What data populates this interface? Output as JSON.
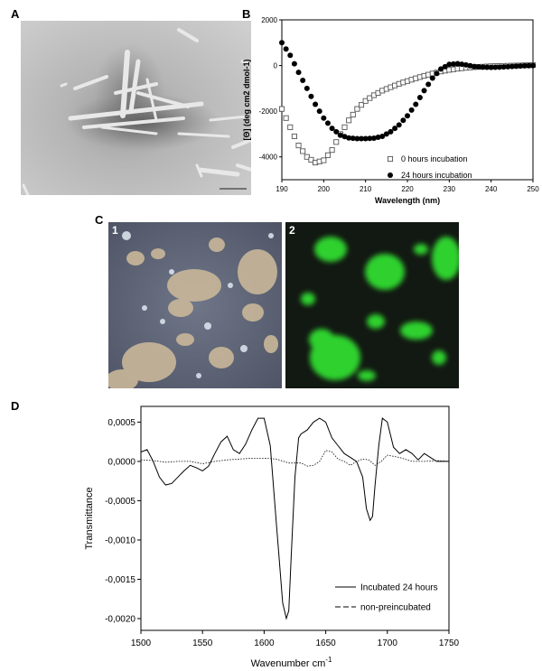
{
  "panel_labels": {
    "a": "A",
    "b": "B",
    "c": "C",
    "d": "D"
  },
  "micrograph_labels": {
    "left": "1",
    "right": "2"
  },
  "colors": {
    "fluorescence": "#2fd12f",
    "background_dark": "#101510",
    "em_background": "#b8b8b8"
  },
  "chart_data": [
    {
      "type": "scatter",
      "panel": "B",
      "xlabel": "Wavelength (nm)",
      "ylabel": "[Θ] (deg cm2 dmol-1)",
      "xlim": [
        190,
        250
      ],
      "ylim": [
        -5000,
        2000
      ],
      "xticks": [
        190,
        200,
        210,
        220,
        230,
        240,
        250
      ],
      "yticks": [
        2000,
        0,
        -2000,
        -4000
      ],
      "legend_position": "bottom-right",
      "series": [
        {
          "name": "0 hours incubation",
          "marker": "open-square",
          "x": [
            190,
            192,
            194,
            196,
            198,
            200,
            202,
            204,
            206,
            208,
            210,
            212,
            214,
            216,
            218,
            220,
            222,
            224,
            226,
            228,
            230,
            232,
            234,
            236,
            238,
            240,
            242,
            244,
            246,
            248,
            250
          ],
          "y": [
            -1900,
            -2700,
            -3500,
            -4000,
            -4250,
            -4150,
            -3700,
            -3000,
            -2400,
            -1900,
            -1550,
            -1300,
            -1100,
            -950,
            -800,
            -680,
            -560,
            -450,
            -350,
            -260,
            -190,
            -140,
            -100,
            -70,
            -50,
            -30,
            -20,
            -10,
            0,
            10,
            20
          ]
        },
        {
          "name": "24 hours incubation",
          "marker": "filled-circle",
          "x": [
            190,
            192,
            194,
            196,
            198,
            200,
            202,
            204,
            206,
            208,
            210,
            212,
            214,
            216,
            218,
            220,
            222,
            224,
            226,
            228,
            230,
            232,
            234,
            236,
            238,
            240,
            242,
            244,
            246,
            248,
            250
          ],
          "y": [
            1000,
            450,
            -300,
            -1000,
            -1700,
            -2300,
            -2750,
            -3050,
            -3170,
            -3200,
            -3200,
            -3180,
            -3100,
            -2900,
            -2600,
            -2200,
            -1700,
            -1100,
            -550,
            -150,
            50,
            80,
            30,
            -40,
            -70,
            -80,
            -70,
            -50,
            -30,
            -10,
            0
          ]
        }
      ]
    },
    {
      "type": "line",
      "panel": "D",
      "xlabel": "Wavenumber cm",
      "xlabel_sup": "-1",
      "ylabel": "Transmittance",
      "xlim": [
        1500,
        1750
      ],
      "ylim": [
        -0.00215,
        0.0007
      ],
      "xticks": [
        1500,
        1550,
        1600,
        1650,
        1700,
        1750
      ],
      "yticks": [
        "0,0005",
        "0,0000",
        "-0,0005",
        "-0,0010",
        "-0,0015",
        "-0,0020"
      ],
      "ytick_values": [
        0.0005,
        0.0,
        -0.0005,
        -0.001,
        -0.0015,
        -0.002
      ],
      "legend_position": "bottom-right",
      "series": [
        {
          "name": "Incubated 24 hours",
          "style": "solid",
          "x": [
            1500,
            1505,
            1510,
            1515,
            1520,
            1525,
            1530,
            1535,
            1540,
            1545,
            1550,
            1555,
            1560,
            1565,
            1570,
            1575,
            1580,
            1585,
            1590,
            1595,
            1600,
            1605,
            1610,
            1612,
            1615,
            1618,
            1620,
            1622,
            1625,
            1628,
            1630,
            1635,
            1640,
            1645,
            1650,
            1655,
            1660,
            1665,
            1670,
            1675,
            1680,
            1683,
            1686,
            1688,
            1690,
            1693,
            1696,
            1700,
            1705,
            1710,
            1715,
            1720,
            1725,
            1730,
            1735,
            1740,
            1745,
            1750
          ],
          "y": [
            0.00012,
            0.00015,
            0.0,
            -0.0002,
            -0.0003,
            -0.00028,
            -0.0002,
            -0.00012,
            -5e-05,
            -8e-05,
            -0.00012,
            -6e-05,
            0.0001,
            0.00025,
            0.00032,
            0.00015,
            0.0001,
            0.00022,
            0.0004,
            0.00055,
            0.00055,
            0.0002,
            -0.0008,
            -0.0012,
            -0.0018,
            -0.002,
            -0.0019,
            -0.0012,
            -0.0002,
            0.0003,
            0.00035,
            0.0004,
            0.0005,
            0.00055,
            0.0005,
            0.0003,
            0.0002,
            0.0001,
            5e-05,
            0.0,
            -0.0002,
            -0.0006,
            -0.00075,
            -0.0007,
            -0.0003,
            0.0002,
            0.00055,
            0.0005,
            0.00018,
            0.0001,
            0.00015,
            0.0001,
            2e-05,
            0.0001,
            5e-05,
            0.0,
            0.0,
            0.0
          ]
        },
        {
          "name": "non-preincubated",
          "style": "dashed",
          "x": [
            1500,
            1510,
            1520,
            1530,
            1540,
            1550,
            1560,
            1570,
            1580,
            1590,
            1600,
            1610,
            1620,
            1630,
            1635,
            1640,
            1645,
            1650,
            1655,
            1660,
            1665,
            1670,
            1675,
            1680,
            1685,
            1690,
            1695,
            1700,
            1710,
            1720,
            1730,
            1740,
            1750
          ],
          "y": [
            2e-05,
            1e-05,
            -1e-05,
            0.0,
            0.0,
            -3e-05,
            0.0,
            2e-05,
            3e-05,
            4e-05,
            4e-05,
            3e-05,
            -2e-05,
            -2e-05,
            -6e-05,
            -5e-05,
            0.0,
            0.00014,
            0.00012,
            3e-05,
            0.0,
            -5e-05,
            0.0,
            3e-05,
            2e-05,
            -5e-05,
            0.0,
            8e-05,
            5e-05,
            0.0,
            0.0,
            1e-05,
            0.0
          ]
        }
      ]
    }
  ]
}
